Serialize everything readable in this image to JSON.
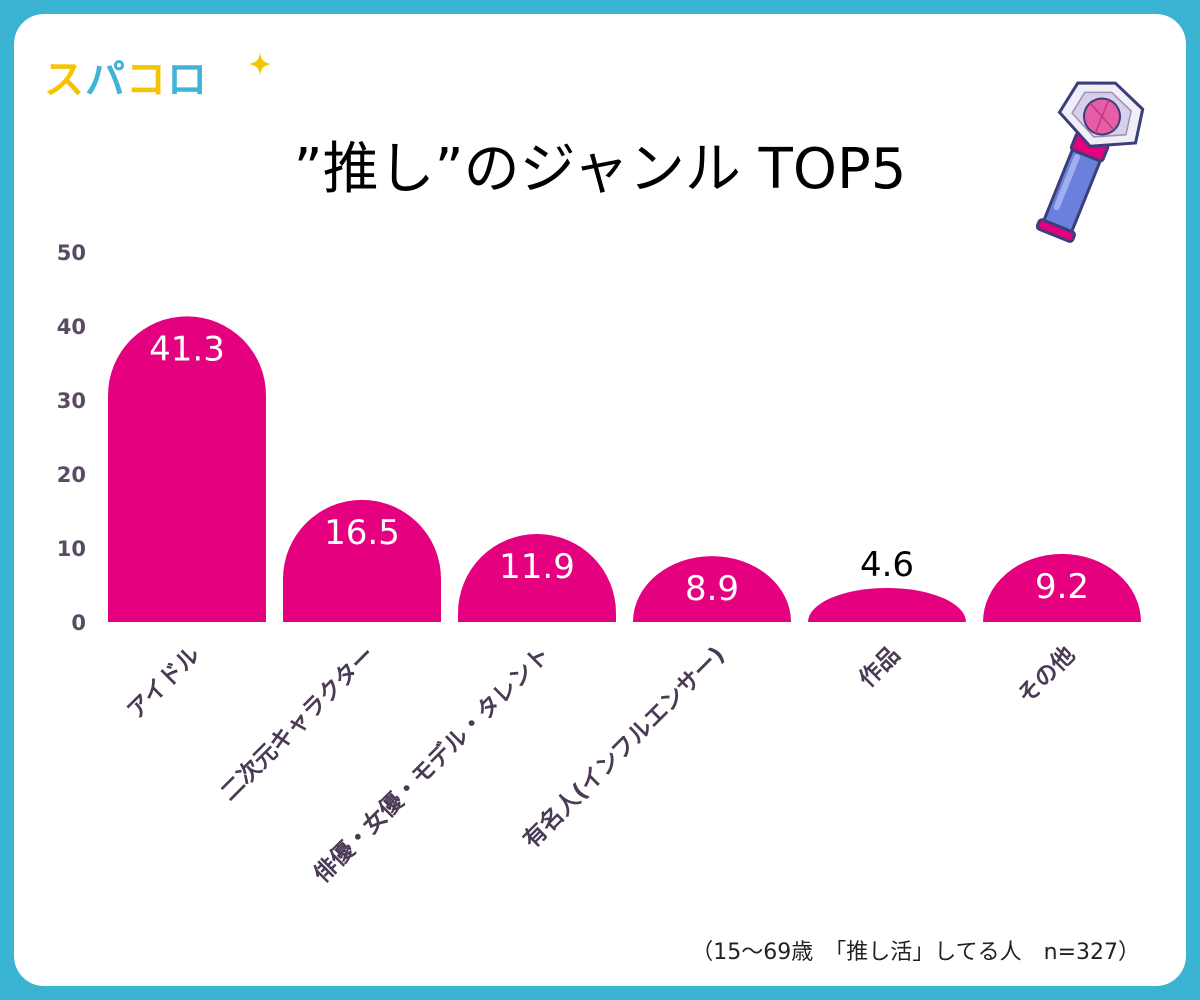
{
  "logo": {
    "chars": [
      "ス",
      "パ",
      "コ",
      "ロ"
    ]
  },
  "title": "”推し”のジャンル TOP5",
  "footnote": "（15〜69歳　「推し活」してる人　n=327）",
  "colors": {
    "bar": "#e5007f",
    "frame": "#3bb3d3",
    "label_on_bar": "#ffffff",
    "label_above_bar": "#000000"
  },
  "icons": {
    "logo_sparkle": "sparkle-icon",
    "illustration": "penlight-icon"
  },
  "chart_data": {
    "type": "bar",
    "title": "”推し”のジャンル TOP5",
    "xlabel": "",
    "ylabel": "",
    "categories": [
      "アイドル",
      "二次元キャラクター",
      "俳優・女優・モデル・タレント",
      "有名人(インフルエンサー)",
      "作品",
      "その他"
    ],
    "values": [
      41.3,
      16.5,
      11.9,
      8.9,
      4.6,
      9.2
    ],
    "value_labels": [
      "41.3",
      "16.5",
      "11.9",
      "8.9",
      "4.6",
      "9.2"
    ],
    "ylim": [
      0,
      50
    ],
    "yticks": [
      0,
      10,
      20,
      30,
      40,
      50
    ],
    "grid": false,
    "legend": "none"
  }
}
